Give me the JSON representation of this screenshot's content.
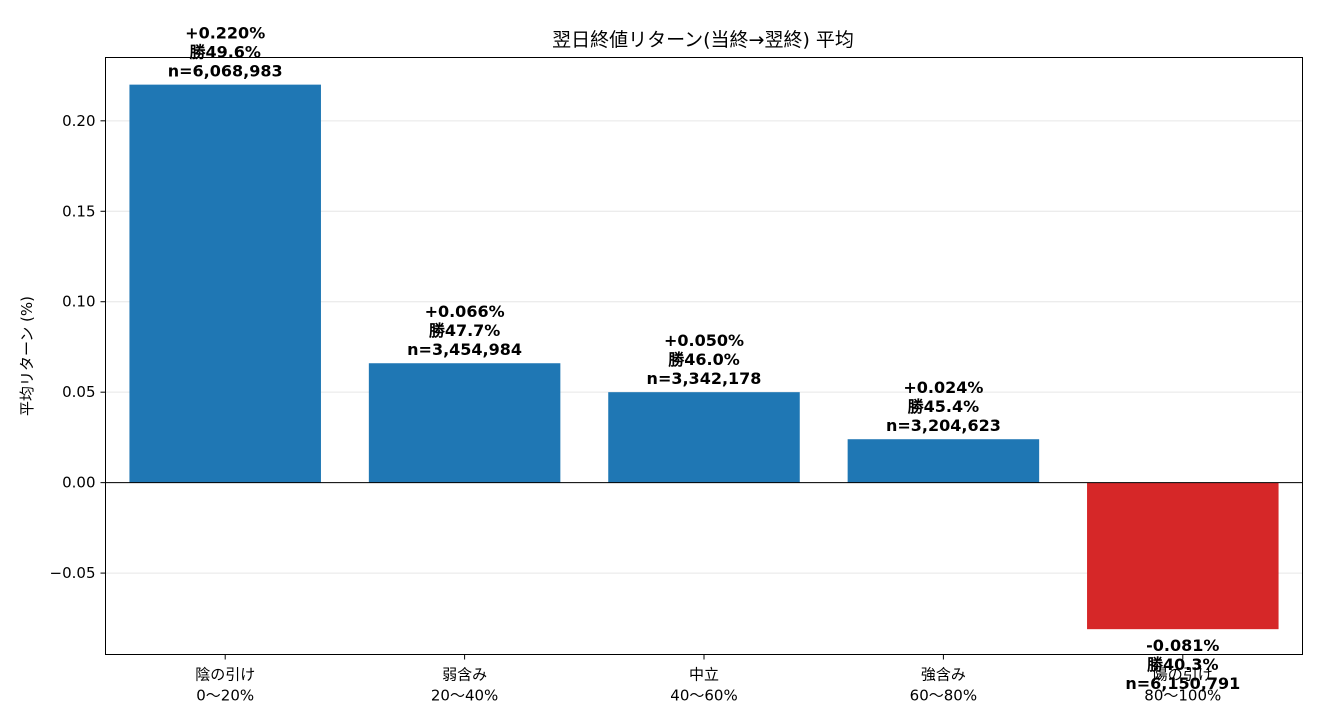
{
  "chart_data": {
    "type": "bar",
    "title": "翌日終値リターン(当終→翌終) 平均",
    "xlabel": "",
    "ylabel": "平均リターン (%)",
    "ylim": [
      -0.095,
      0.235
    ],
    "yticks": [
      -0.05,
      0.0,
      0.05,
      0.1,
      0.15,
      0.2
    ],
    "ytick_labels": [
      "−0.05",
      "0.00",
      "0.05",
      "0.10",
      "0.15",
      "0.20"
    ],
    "grid": "horizontal",
    "categories": [
      [
        "陰の引け",
        "0〜20%"
      ],
      [
        "弱含み",
        "20〜40%"
      ],
      [
        "中立",
        "40〜60%"
      ],
      [
        "強含み",
        "60〜80%"
      ],
      [
        "陽の引け",
        "80〜100%"
      ]
    ],
    "values": [
      0.22,
      0.066,
      0.05,
      0.024,
      -0.081
    ],
    "bar_colors": [
      "#1f77b4",
      "#1f77b4",
      "#1f77b4",
      "#1f77b4",
      "#d62728"
    ],
    "annotations": [
      [
        "+0.220%",
        "勝49.6%",
        "n=6,068,983"
      ],
      [
        "+0.066%",
        "勝47.7%",
        "n=3,454,984"
      ],
      [
        "+0.050%",
        "勝46.0%",
        "n=3,342,178"
      ],
      [
        "+0.024%",
        "勝45.4%",
        "n=3,204,623"
      ],
      [
        "-0.081%",
        "勝40.3%",
        "n=6,150,791"
      ]
    ]
  }
}
